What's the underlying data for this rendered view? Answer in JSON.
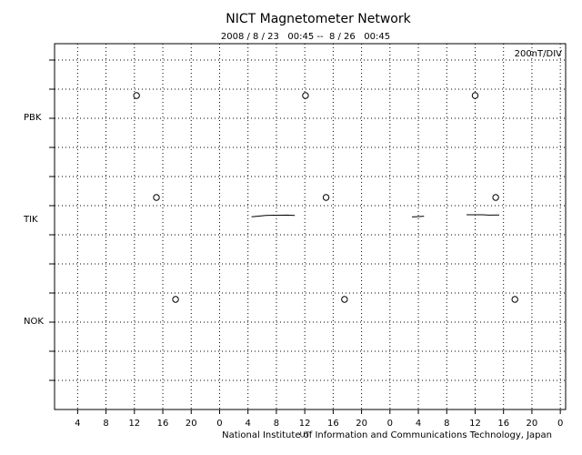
{
  "chart_data": {
    "type": "magnetogram",
    "title": "NICT Magnetometer Network",
    "subtitle": "2008 / 8 / 23   00:45 --  8 / 26   00:45",
    "scale_label": "200nT/DIV",
    "xlabel": "UT",
    "footer": "National Institute of Information and Communications Technology, Japan",
    "xlim": [
      0.75,
      72.75
    ],
    "xticks": [
      4,
      8,
      12,
      16,
      20,
      {
        "value": 24,
        "label": "0"
      },
      {
        "value": 28,
        "label": "4"
      },
      {
        "value": 32,
        "label": "8"
      },
      {
        "value": 36,
        "label": "12"
      },
      {
        "value": 40,
        "label": "16"
      },
      {
        "value": 44,
        "label": "20"
      },
      {
        "value": 48,
        "label": "0"
      },
      {
        "value": 52,
        "label": "4"
      },
      {
        "value": 56,
        "label": "8"
      },
      {
        "value": 60,
        "label": "12"
      },
      {
        "value": 64,
        "label": "16"
      },
      {
        "value": 68,
        "label": "20"
      },
      {
        "value": 72,
        "label": "0"
      }
    ],
    "nt_per_div": 200,
    "stations": [
      {
        "name": "PBK",
        "noon": [
          12.3,
          36.1,
          60.0
        ],
        "x": [],
        "values": []
      },
      {
        "name": "TIK",
        "noon": [
          15.1,
          39.0,
          62.9
        ],
        "x": [
          28.5,
          29.5,
          30.5,
          31.5,
          32.5,
          33.5,
          34.6,
          null,
          51.1,
          52,
          52.8,
          null,
          58.8,
          60,
          61,
          62,
          63.4
        ],
        "values": [
          17,
          22,
          26,
          28,
          28,
          29,
          27,
          null,
          16,
          19,
          21,
          null,
          31,
          31,
          31,
          29,
          30
        ]
      },
      {
        "name": "NOK",
        "noon": [
          17.8,
          41.6,
          65.6
        ],
        "x": [],
        "values": []
      }
    ]
  }
}
